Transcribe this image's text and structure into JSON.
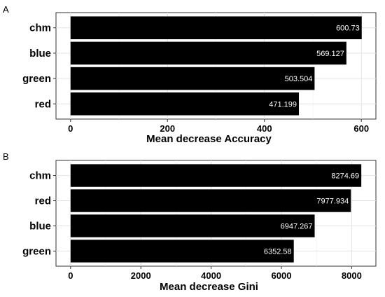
{
  "chart_data": [
    {
      "panel": "A",
      "type": "bar",
      "orientation": "horizontal",
      "categories": [
        "chm",
        "blue",
        "green",
        "red"
      ],
      "values": [
        600.73,
        569.127,
        503.504,
        471.199
      ],
      "value_labels": [
        "600.73",
        "569.127",
        "503.504",
        "471.199"
      ],
      "xlabel": "Mean decrease Accuracy",
      "xlim": [
        -30,
        630
      ],
      "xticks": [
        0,
        200,
        400,
        600
      ],
      "grid": true,
      "bar_color": "#000000"
    },
    {
      "panel": "B",
      "type": "bar",
      "orientation": "horizontal",
      "categories": [
        "chm",
        "red",
        "blue",
        "green"
      ],
      "values": [
        8274.69,
        7977.934,
        6947.267,
        6352.58
      ],
      "value_labels": [
        "8274.69",
        "7977.934",
        "6947.267",
        "6352.58"
      ],
      "xlabel": "Mean decrease Gini",
      "xlim": [
        -415,
        8690
      ],
      "xticks": [
        0,
        2000,
        4000,
        6000,
        8000
      ],
      "grid": true,
      "bar_color": "#000000"
    }
  ]
}
